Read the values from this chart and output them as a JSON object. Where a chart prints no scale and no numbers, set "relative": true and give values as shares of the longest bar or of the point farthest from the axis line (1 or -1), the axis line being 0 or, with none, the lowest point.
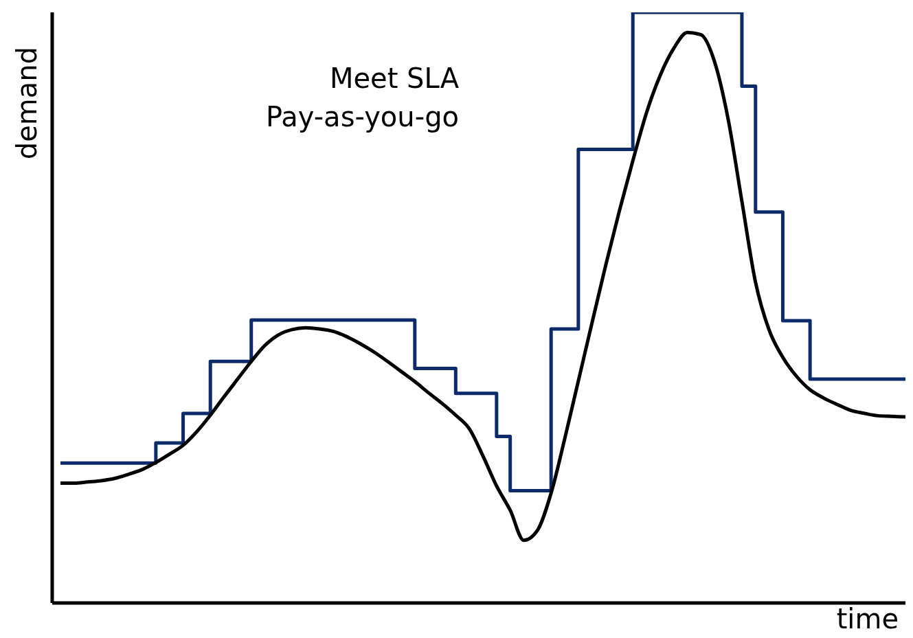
{
  "chart_data": {
    "type": "line",
    "relative": true,
    "xlabel": "time",
    "ylabel": "demand",
    "annotations": [
      "Meet SLA",
      "Pay-as-you-go"
    ],
    "categories": [
      null,
      null,
      null,
      null,
      null,
      null,
      null,
      null,
      null,
      null,
      null,
      null,
      null,
      null,
      null,
      null,
      null,
      null,
      null,
      null,
      null,
      null,
      null,
      null,
      null,
      null,
      null,
      null,
      null,
      null,
      null,
      null,
      null,
      null,
      null,
      null,
      null,
      null,
      null,
      null,
      null,
      null,
      null,
      null,
      null,
      null,
      null,
      null,
      null,
      null,
      null,
      null,
      null,
      null,
      null,
      null,
      null,
      null,
      null,
      null,
      null,
      null,
      null
    ],
    "series": [
      {
        "type": "step",
        "color": "#0d2a6b",
        "values": [
          0.237,
          0.237,
          0.237,
          0.237,
          0.237,
          0.237,
          0.237,
          0.271,
          0.271,
          0.321,
          0.321,
          0.409,
          0.409,
          0.409,
          0.479,
          0.479,
          0.479,
          0.479,
          0.479,
          0.479,
          0.479,
          0.479,
          0.479,
          0.479,
          0.479,
          0.479,
          0.397,
          0.397,
          0.397,
          0.355,
          0.355,
          0.355,
          0.282,
          0.19,
          0.19,
          0.19,
          0.464,
          0.464,
          0.768,
          0.768,
          0.768,
          0.768,
          1,
          1,
          1,
          1,
          1,
          1,
          1,
          1,
          0.875,
          0.662,
          0.662,
          0.478,
          0.478,
          0.379,
          0.379,
          0.379,
          0.379,
          0.379,
          0.379,
          0.379,
          0.379
        ]
      },
      {
        "type": "line",
        "color": "#000000",
        "values": [
          0.203,
          0.203,
          0.205,
          0.207,
          0.211,
          0.218,
          0.226,
          0.238,
          0.252,
          0.267,
          0.29,
          0.318,
          0.349,
          0.379,
          0.409,
          0.436,
          0.454,
          0.463,
          0.466,
          0.464,
          0.46,
          0.451,
          0.439,
          0.425,
          0.409,
          0.392,
          0.375,
          0.356,
          0.338,
          0.318,
          0.295,
          0.249,
          0.198,
          0.157,
          0.106,
          0.123,
          0.186,
          0.278,
          0.376,
          0.474,
          0.571,
          0.663,
          0.749,
          0.83,
          0.893,
          0.939,
          0.966,
          0.962,
          0.916,
          0.818,
          0.68,
          0.543,
          0.462,
          0.416,
          0.384,
          0.361,
          0.347,
          0.336,
          0.326,
          0.321,
          0.317,
          0.316,
          0.315
        ]
      }
    ]
  }
}
